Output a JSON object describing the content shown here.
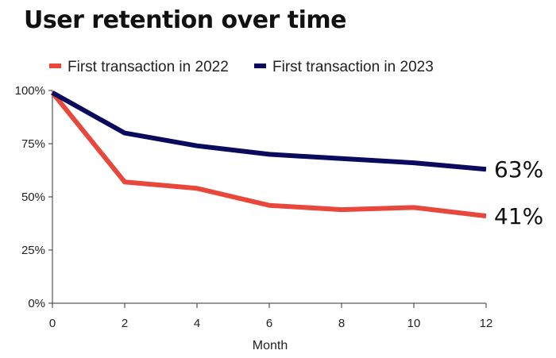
{
  "chart_data": {
    "type": "line",
    "title": "User retention over time",
    "xlabel": "Month",
    "ylabel": "",
    "xlim": [
      0,
      12
    ],
    "ylim": [
      0,
      100
    ],
    "x_ticks": [
      0,
      2,
      4,
      6,
      8,
      10,
      12
    ],
    "y_ticks": [
      0,
      25,
      50,
      75,
      100
    ],
    "y_tick_labels": [
      "0%",
      "25%",
      "50%",
      "75%",
      "100%"
    ],
    "grid": false,
    "legend_position": "top",
    "series": [
      {
        "name": "First transaction in 2022",
        "color": "#e8483b",
        "x": [
          0,
          2,
          4,
          6,
          8,
          10,
          12
        ],
        "values": [
          99,
          57,
          54,
          46,
          44,
          45,
          41
        ],
        "end_label": "41%"
      },
      {
        "name": "First transaction in 2023",
        "color": "#0b0b5e",
        "x": [
          0,
          2,
          4,
          6,
          8,
          10,
          12
        ],
        "values": [
          99,
          80,
          74,
          70,
          68,
          66,
          63
        ],
        "end_label": "63%"
      }
    ]
  }
}
